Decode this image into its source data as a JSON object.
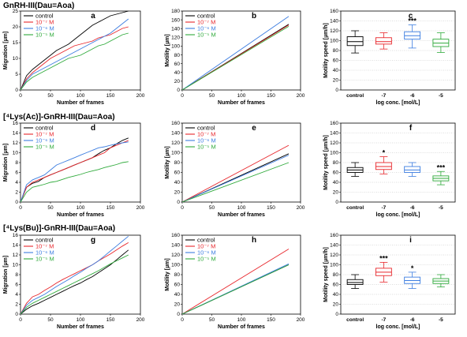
{
  "figure": {
    "colors": {
      "control": "#000000",
      "1e-7": "#e8262b",
      "1e-6": "#3c7de0",
      "1e-5": "#2faa3b"
    },
    "legend_labels": {
      "control": "control",
      "1e-7": "10⁻⁷ M",
      "1e-6": "10⁻⁶ M",
      "1e-5": "10⁻⁵ M"
    },
    "rows": [
      {
        "title": "GnRH-III(Dau=Aoa)"
      },
      {
        "title": "[⁴Lys(Ac)]-GnRH-III(Dau=Aoa)"
      },
      {
        "title": "[⁴Lys(Bu)]-GnRH-III(Dau=Aoa)"
      }
    ]
  },
  "chart_data": [
    {
      "id": "a",
      "letter": "a",
      "type": "line",
      "xlabel": "Number of frames",
      "ylabel": "Migration [µm]",
      "xlim": [
        0,
        200
      ],
      "ylim": [
        0,
        25
      ],
      "xticks": [
        0,
        50,
        100,
        150,
        200
      ],
      "yticks": [
        0,
        5,
        10,
        15,
        20,
        25
      ],
      "legend": "top-left",
      "x": [
        0,
        10,
        20,
        30,
        40,
        50,
        60,
        70,
        80,
        90,
        100,
        110,
        120,
        130,
        140,
        150,
        160,
        170,
        180
      ],
      "series": [
        {
          "key": "control",
          "values": [
            0,
            4.5,
            6.5,
            8,
            9.5,
            11,
            12.5,
            13.5,
            14.5,
            16,
            17.5,
            19,
            20.5,
            21.5,
            22.5,
            23.5,
            24,
            24.5,
            25
          ]
        },
        {
          "key": "1e-7",
          "values": [
            0,
            3.5,
            5.5,
            7,
            8.5,
            10,
            11,
            12,
            13,
            14,
            14.5,
            15,
            15.5,
            16.5,
            17,
            17.5,
            18.5,
            19.5,
            20
          ]
        },
        {
          "key": "1e-6",
          "values": [
            0,
            3,
            5,
            6,
            7,
            8,
            9,
            10,
            11,
            12,
            13,
            14,
            15,
            16,
            17,
            18,
            19.5,
            21,
            22.5
          ]
        },
        {
          "key": "1e-5",
          "values": [
            0,
            2.5,
            4,
            5,
            6,
            7,
            8,
            9,
            10,
            10.5,
            11,
            12,
            13,
            14,
            14.5,
            15.5,
            16.5,
            17.5,
            18
          ]
        }
      ]
    },
    {
      "id": "b",
      "letter": "b",
      "type": "line",
      "xlabel": "Number of frames",
      "ylabel": "Motility [µm]",
      "xlim": [
        0,
        200
      ],
      "ylim": [
        0,
        180
      ],
      "xticks": [
        0,
        50,
        100,
        150,
        200
      ],
      "yticks": [
        0,
        20,
        40,
        60,
        80,
        100,
        120,
        140,
        160,
        180
      ],
      "legend": "top-left",
      "x": [
        0,
        180
      ],
      "series": [
        {
          "key": "control",
          "values": [
            0,
            150
          ]
        },
        {
          "key": "1e-7",
          "values": [
            0,
            148
          ]
        },
        {
          "key": "1e-6",
          "values": [
            0,
            168
          ]
        },
        {
          "key": "1e-5",
          "values": [
            0,
            145
          ]
        }
      ]
    },
    {
      "id": "c",
      "letter": "c",
      "type": "box",
      "xlabel": "log conc. [mol/L]",
      "ylabel": "Motility speed [µm/h]",
      "ylim": [
        0,
        160
      ],
      "yticks": [
        0,
        20,
        40,
        60,
        80,
        100,
        120,
        140,
        160
      ],
      "categories": [
        "control",
        "-7",
        "-6",
        "-5"
      ],
      "series_keys": [
        "control",
        "1e-7",
        "1e-6",
        "1e-5"
      ],
      "boxes": [
        {
          "min": 75,
          "q1": 90,
          "median": 98,
          "q3": 108,
          "max": 120,
          "star": ""
        },
        {
          "min": 83,
          "q1": 93,
          "median": 98,
          "q3": 106,
          "max": 116,
          "star": ""
        },
        {
          "min": 85,
          "q1": 103,
          "median": 110,
          "q3": 118,
          "max": 132,
          "star": "***"
        },
        {
          "min": 76,
          "q1": 88,
          "median": 95,
          "q3": 103,
          "max": 116,
          "star": ""
        }
      ]
    },
    {
      "id": "d",
      "letter": "d",
      "type": "line",
      "xlabel": "Number of frames",
      "ylabel": "Migration [µm]",
      "xlim": [
        0,
        200
      ],
      "ylim": [
        0,
        16
      ],
      "xticks": [
        0,
        50,
        100,
        150,
        200
      ],
      "yticks": [
        0,
        2,
        4,
        6,
        8,
        10,
        12,
        14,
        16
      ],
      "legend": "top-left",
      "x": [
        0,
        10,
        20,
        30,
        40,
        50,
        60,
        70,
        80,
        90,
        100,
        110,
        120,
        130,
        140,
        150,
        160,
        170,
        180
      ],
      "series": [
        {
          "key": "control",
          "values": [
            0,
            3,
            3.8,
            4.2,
            5,
            5.5,
            6,
            6.5,
            7,
            7.5,
            8,
            8.5,
            9,
            9.8,
            10.5,
            11,
            11.8,
            12.5,
            13
          ]
        },
        {
          "key": "1e-7",
          "values": [
            0,
            3,
            4,
            4.5,
            5,
            5.5,
            6,
            6.5,
            7,
            7.5,
            8,
            8.5,
            9,
            9.5,
            10,
            11,
            11.5,
            12,
            12.5
          ]
        },
        {
          "key": "1e-6",
          "values": [
            0,
            3.5,
            4.5,
            5,
            5.5,
            6.5,
            7.5,
            8,
            8.5,
            9,
            9.5,
            10,
            10.5,
            11,
            11.2,
            11.5,
            11.8,
            12,
            12.2
          ]
        },
        {
          "key": "1e-5",
          "values": [
            0,
            2,
            3,
            3.3,
            3.6,
            4,
            4.2,
            4.6,
            5,
            5.3,
            5.6,
            6,
            6.3,
            6.6,
            7,
            7.3,
            7.6,
            8,
            8.2
          ]
        }
      ]
    },
    {
      "id": "e",
      "letter": "e",
      "type": "line",
      "xlabel": "Number of frames",
      "ylabel": "Motility [µm]",
      "xlim": [
        0,
        200
      ],
      "ylim": [
        0,
        160
      ],
      "xticks": [
        0,
        50,
        100,
        150,
        200
      ],
      "yticks": [
        0,
        20,
        40,
        60,
        80,
        100,
        120,
        140,
        160
      ],
      "legend": "top-left",
      "x": [
        0,
        180
      ],
      "series": [
        {
          "key": "control",
          "values": [
            0,
            98
          ]
        },
        {
          "key": "1e-7",
          "values": [
            0,
            115
          ]
        },
        {
          "key": "1e-6",
          "values": [
            0,
            95
          ]
        },
        {
          "key": "1e-5",
          "values": [
            0,
            80
          ]
        }
      ]
    },
    {
      "id": "f",
      "letter": "f",
      "type": "box",
      "xlabel": "log conc. [mol/L]",
      "ylabel": "Motility speed [µm/h]",
      "ylim": [
        0,
        160
      ],
      "yticks": [
        0,
        20,
        40,
        60,
        80,
        100,
        120,
        140,
        160
      ],
      "categories": [
        "control",
        "-7",
        "-6",
        "-5"
      ],
      "series_keys": [
        "control",
        "1e-7",
        "1e-6",
        "1e-5"
      ],
      "boxes": [
        {
          "min": 52,
          "q1": 60,
          "median": 65,
          "q3": 70,
          "max": 80,
          "star": ""
        },
        {
          "min": 57,
          "q1": 66,
          "median": 72,
          "q3": 80,
          "max": 92,
          "star": "*"
        },
        {
          "min": 52,
          "q1": 60,
          "median": 65,
          "q3": 72,
          "max": 80,
          "star": ""
        },
        {
          "min": 35,
          "q1": 43,
          "median": 48,
          "q3": 53,
          "max": 62,
          "star": "***"
        }
      ]
    },
    {
      "id": "g",
      "letter": "g",
      "type": "line",
      "xlabel": "Number of frames",
      "ylabel": "Migration [µm]",
      "xlim": [
        0,
        200
      ],
      "ylim": [
        0,
        16
      ],
      "xticks": [
        0,
        50,
        100,
        150,
        200
      ],
      "yticks": [
        0,
        2,
        4,
        6,
        8,
        10,
        12,
        14,
        16
      ],
      "legend": "top-left",
      "x": [
        0,
        10,
        20,
        30,
        40,
        50,
        60,
        70,
        80,
        90,
        100,
        110,
        120,
        130,
        140,
        150,
        160,
        170,
        180
      ],
      "series": [
        {
          "key": "control",
          "values": [
            0,
            1,
            1.7,
            2.2,
            2.8,
            3.4,
            4,
            4.6,
            5.2,
            5.8,
            6.3,
            7,
            7.6,
            8.4,
            9.2,
            10,
            11,
            12,
            13
          ]
        },
        {
          "key": "1e-7",
          "values": [
            0,
            2.2,
            3.5,
            4,
            4.8,
            5.5,
            6.3,
            7,
            7.6,
            8.2,
            8.8,
            9.4,
            10,
            10.8,
            11.5,
            12.2,
            13,
            13.8,
            14.5
          ]
        },
        {
          "key": "1e-6",
          "values": [
            0,
            1.8,
            2.8,
            3.4,
            4,
            4.8,
            5.6,
            6.3,
            7,
            7.8,
            8.5,
            9.3,
            10,
            10.8,
            11.8,
            12.8,
            13.8,
            14.8,
            15.8
          ]
        },
        {
          "key": "1e-5",
          "values": [
            0,
            1.4,
            2.2,
            2.8,
            3.4,
            4,
            4.6,
            5.2,
            5.8,
            6.4,
            7,
            7.6,
            8.2,
            8.8,
            9.5,
            10.2,
            10.8,
            11.4,
            12
          ]
        }
      ]
    },
    {
      "id": "h",
      "letter": "h",
      "type": "line",
      "xlabel": "Number of frames",
      "ylabel": "Motility [µm]",
      "xlim": [
        0,
        200
      ],
      "ylim": [
        0,
        160
      ],
      "xticks": [
        0,
        50,
        100,
        150,
        200
      ],
      "yticks": [
        0,
        20,
        40,
        60,
        80,
        100,
        120,
        140,
        160
      ],
      "legend": "top-left",
      "x": [
        0,
        180
      ],
      "series": [
        {
          "key": "control",
          "values": [
            0,
            100
          ]
        },
        {
          "key": "1e-7",
          "values": [
            0,
            132
          ]
        },
        {
          "key": "1e-6",
          "values": [
            0,
            102
          ]
        },
        {
          "key": "1e-5",
          "values": [
            0,
            100
          ]
        }
      ]
    },
    {
      "id": "i",
      "letter": "i",
      "type": "box",
      "xlabel": "log conc. [mol/L]",
      "ylabel": "Motility speed [µm/h]",
      "ylim": [
        0,
        160
      ],
      "yticks": [
        0,
        20,
        40,
        60,
        80,
        100,
        120,
        140,
        160
      ],
      "categories": [
        "control",
        "-7",
        "-6",
        "-5"
      ],
      "series_keys": [
        "control",
        "1e-7",
        "1e-6",
        "1e-5"
      ],
      "boxes": [
        {
          "min": 52,
          "q1": 60,
          "median": 64,
          "q3": 70,
          "max": 80,
          "star": ""
        },
        {
          "min": 65,
          "q1": 78,
          "median": 85,
          "q3": 93,
          "max": 105,
          "star": "***"
        },
        {
          "min": 52,
          "q1": 62,
          "median": 68,
          "q3": 75,
          "max": 85,
          "star": "*"
        },
        {
          "min": 55,
          "q1": 62,
          "median": 67,
          "q3": 72,
          "max": 80,
          "star": ""
        }
      ]
    }
  ]
}
